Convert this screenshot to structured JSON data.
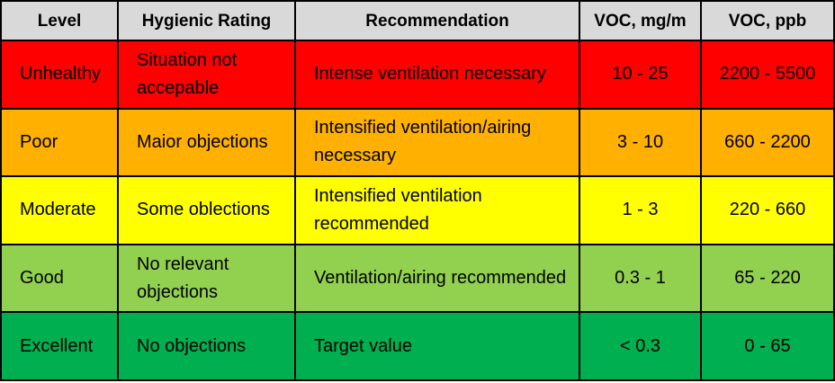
{
  "colors": {
    "header": "#d9d9d9",
    "unhealthy": "#ff0000",
    "poor": "#ffb000",
    "moderate": "#ffff00",
    "good": "#92d050",
    "excellent": "#00b050"
  },
  "table": {
    "headers": {
      "level": "Level",
      "rating": "Hygienic Rating",
      "recommendation": "Recommendation",
      "voc_mg": "VOC, mg/m",
      "voc_ppb": "VOC, ppb"
    },
    "rows": [
      {
        "level": "Unhealthy",
        "rating": "Situation not accepable",
        "recommendation": "Intense ventilation necessary",
        "voc_mg": "10 - 25",
        "voc_ppb": "2200 - 5500",
        "color": "#ff0000"
      },
      {
        "level": "Poor",
        "rating": "Maior objections",
        "recommendation": "Intensified ventilation/airing necessary",
        "voc_mg": "3 - 10",
        "voc_ppb": "660 - 2200",
        "color": "#ffb000"
      },
      {
        "level": "Moderate",
        "rating": "Some oblections",
        "recommendation": "Intensified ventilation recommended",
        "voc_mg": "1 - 3",
        "voc_ppb": "220 - 660",
        "color": "#ffff00"
      },
      {
        "level": "Good",
        "rating": "No relevant objections",
        "recommendation": "Ventilation/airing recommended",
        "voc_mg": "0.3 - 1",
        "voc_ppb": "65 - 220",
        "color": "#92d050"
      },
      {
        "level": "Excellent",
        "rating": "No objections",
        "recommendation": "Target value",
        "voc_mg": "< 0.3",
        "voc_ppb": "0 - 65",
        "color": "#00b050"
      }
    ]
  }
}
